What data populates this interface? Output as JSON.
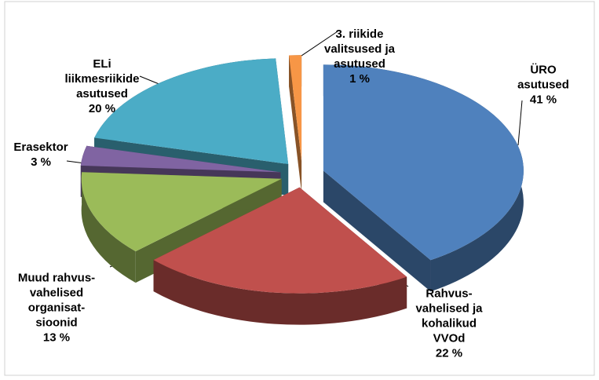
{
  "chart_data": {
    "type": "pie",
    "categories": [
      "ÜRO asutused",
      "Rahvus-\nvahelised ja\nkohalikud\nVVOd",
      "Muud rahvus-\nvahelised\norganisat-\nsioonid",
      "Erasektor",
      "ELi\nliikmesriikide\nasutused",
      "3. riikide\nvalitsused ja\nasutused"
    ],
    "values": [
      41,
      22,
      13,
      3,
      20,
      1
    ],
    "value_labels": [
      "41 %",
      "22 %",
      "13 %",
      "3 %",
      "20 %",
      "1 %"
    ],
    "colors": [
      "#4f81bd",
      "#c0504d",
      "#9bbb59",
      "#8064a2",
      "#4bacc6",
      "#f79646"
    ]
  }
}
